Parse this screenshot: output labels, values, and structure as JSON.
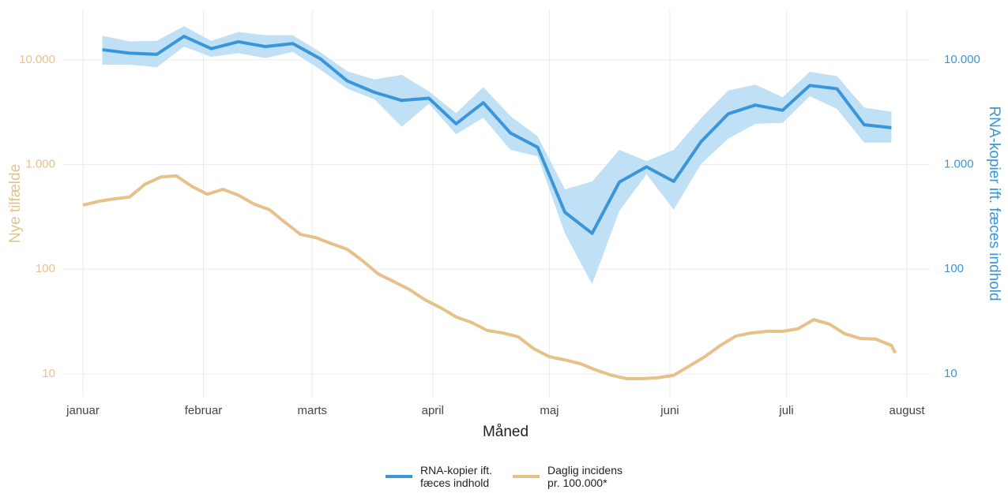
{
  "chart_data": {
    "type": "line",
    "x_label": "Måned",
    "y_label": "Nye tilfælde",
    "y2_label": "RNA-kopier ift. fæces indhold",
    "log_y": true,
    "grid": true,
    "legend": "bottom",
    "xlim": [
      -5,
      218
    ],
    "xticks": [
      {
        "value": 0,
        "label": "januar"
      },
      {
        "value": 31,
        "label": "februar"
      },
      {
        "value": 59,
        "label": "marts"
      },
      {
        "value": 90,
        "label": "april"
      },
      {
        "value": 120,
        "label": "maj"
      },
      {
        "value": 151,
        "label": "juni"
      },
      {
        "value": 181,
        "label": "juli"
      },
      {
        "value": 212,
        "label": "august"
      }
    ],
    "ylim": [
      6,
      30000
    ],
    "yticks": [
      10,
      {
        "value": 100,
        "label": "100"
      },
      {
        "value": 1000,
        "label": "1.000"
      },
      {
        "value": 10000,
        "label": "10.000"
      }
    ],
    "y2lim": [
      6,
      30000
    ],
    "y2ticks": [
      10,
      {
        "value": 100,
        "label": "100"
      },
      {
        "value": 1000,
        "label": "1.000"
      },
      {
        "value": 10000,
        "label": "10.000"
      }
    ],
    "series": [
      {
        "name": "RNA-kopier ift.\nfæces indhold",
        "color": "#3a96d8",
        "band_color": "#bfe0f5",
        "axis": "y2",
        "x": [
          5,
          12,
          19,
          26,
          33,
          40,
          47,
          54,
          61,
          68,
          75,
          82,
          89,
          96,
          103,
          110,
          117,
          124,
          131,
          138,
          145,
          152,
          159,
          166,
          173,
          180,
          187,
          194,
          201,
          208
        ],
        "values": [
          12500,
          11600,
          11300,
          16800,
          12800,
          14900,
          13400,
          14300,
          10300,
          6300,
          4900,
          4100,
          4300,
          2450,
          3900,
          2000,
          1460,
          350,
          220,
          680,
          950,
          690,
          1650,
          3050,
          3700,
          3300,
          5700,
          5300,
          2400,
          2250
        ],
        "lower": [
          9000,
          9000,
          8500,
          13400,
          10700,
          11600,
          10400,
          11900,
          8100,
          5300,
          4200,
          2300,
          3800,
          1950,
          2800,
          1380,
          1200,
          220,
          72,
          360,
          810,
          370,
          1010,
          1770,
          2450,
          2500,
          4500,
          3400,
          1620,
          1620
        ],
        "upper": [
          17000,
          15000,
          15200,
          21000,
          15200,
          18500,
          17200,
          17200,
          11900,
          7800,
          6500,
          7200,
          5000,
          3100,
          5500,
          2900,
          1860,
          580,
          690,
          1380,
          1080,
          1380,
          2770,
          5100,
          5800,
          4400,
          7700,
          7000,
          3500,
          3200
        ]
      },
      {
        "name": "Daglig incidens\npr. 100.000*",
        "color": "#e6c28a",
        "axis": "y",
        "x": [
          0,
          4,
          8,
          12,
          16,
          20,
          24,
          28,
          32,
          36,
          40,
          44,
          48,
          52,
          56,
          60,
          64,
          68,
          72,
          76,
          80,
          84,
          88,
          92,
          96,
          100,
          104,
          108,
          112,
          116,
          120,
          124,
          128,
          132,
          136,
          140,
          144,
          148,
          152,
          156,
          160,
          164,
          168,
          172,
          176,
          180,
          184,
          188,
          192,
          196,
          200,
          204,
          208,
          209
        ],
        "values": [
          410,
          445,
          470,
          490,
          650,
          760,
          780,
          620,
          520,
          580,
          510,
          420,
          370,
          280,
          215,
          200,
          175,
          155,
          120,
          90,
          76,
          64,
          51,
          43,
          35,
          31,
          26,
          24.6,
          22.6,
          17.4,
          14.6,
          13.6,
          12.5,
          10.9,
          9.7,
          9.0,
          9.0,
          9.2,
          9.7,
          11.9,
          14.6,
          18.7,
          23,
          24.6,
          25.5,
          25.5,
          27,
          33,
          30,
          24.2,
          21.8,
          21.5,
          18.7,
          15.8
        ]
      }
    ]
  }
}
